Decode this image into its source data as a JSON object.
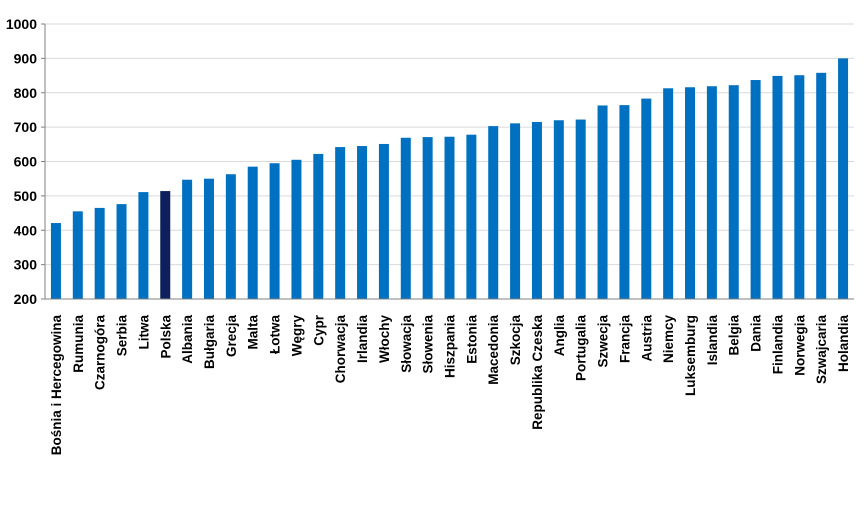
{
  "chart_data": {
    "type": "bar",
    "title": "",
    "xlabel": "",
    "ylabel": "",
    "ylim": [
      200,
      1000
    ],
    "yticks": [
      200,
      300,
      400,
      500,
      600,
      700,
      800,
      900,
      1000
    ],
    "grid": true,
    "legend": "none",
    "colors": {
      "default": "#0070C0",
      "highlight": "#0D1F5C",
      "grid": "#d9d9d9",
      "axis": "#808080"
    },
    "highlight_category": "Polska",
    "categories": [
      "Bośnia i Hercegowina",
      "Rumunia",
      "Czarnogóra",
      "Serbia",
      "Litwa",
      "Polska",
      "Albania",
      "Bułgaria",
      "Grecja",
      "Malta",
      "Łotwa",
      "Węgry",
      "Cypr",
      "Chorwacja",
      "Irlandia",
      "Włochy",
      "Słowacja",
      "Słowenia",
      "Hiszpania",
      "Estonia",
      "Macedonia",
      "Szkocja",
      "Republika Czeska",
      "Anglia",
      "Portugalia",
      "Szwecja",
      "Francja",
      "Austria",
      "Niemcy",
      "Luksemburg",
      "Islandia",
      "Belgia",
      "Dania",
      "Finlandia",
      "Norwegia",
      "Szwajcaria",
      "Holandia"
    ],
    "values": [
      421,
      455,
      465,
      476,
      511,
      514,
      547,
      550,
      563,
      585,
      595,
      605,
      622,
      642,
      645,
      651,
      669,
      671,
      672,
      678,
      703,
      711,
      715,
      720,
      722,
      763,
      764,
      783,
      813,
      816,
      819,
      822,
      837,
      849,
      851,
      858,
      900
    ]
  }
}
